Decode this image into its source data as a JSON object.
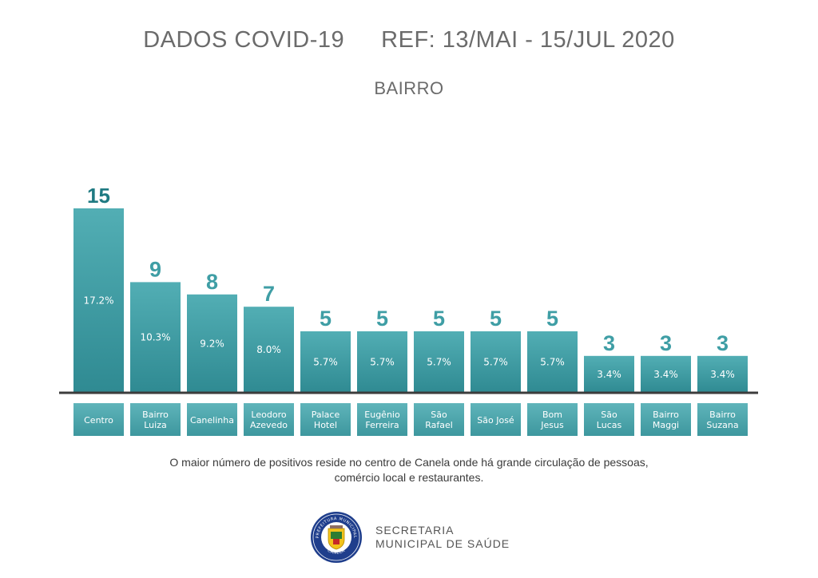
{
  "header": {
    "title": "DADOS COVID-19",
    "reference": "REF: 13/MAI - 15/JUL 2020",
    "subtitle": "BAIRRO"
  },
  "chart_data": {
    "type": "bar",
    "title": "DADOS COVID-19",
    "subtitle": "BAIRRO",
    "categories": [
      [
        "Centro"
      ],
      [
        "Bairro",
        "Luiza"
      ],
      [
        "Canelinha"
      ],
      [
        "Leodoro",
        "Azevedo"
      ],
      [
        "Palace",
        "Hotel"
      ],
      [
        "Eugênio",
        "Ferreira"
      ],
      [
        "São",
        "Rafael"
      ],
      [
        "São José"
      ],
      [
        "Bom",
        "Jesus"
      ],
      [
        "São",
        "Lucas"
      ],
      [
        "Bairro",
        "Maggi"
      ],
      [
        "Bairro",
        "Suzana"
      ]
    ],
    "values": [
      15,
      9,
      8,
      7,
      5,
      5,
      5,
      5,
      5,
      3,
      3,
      3
    ],
    "percent_labels": [
      "17.2%",
      "10.3%",
      "9.2%",
      "8.0%",
      "5.7%",
      "5.7%",
      "5.7%",
      "5.7%",
      "5.7%",
      "3.4%",
      "3.4%",
      "3.4%"
    ],
    "ylim": [
      0,
      15
    ],
    "grid": false,
    "colors": {
      "bar": "#4aa7ae",
      "bar_gradient_bottom": "#2f8a92",
      "value_text": "#3f9ea5",
      "value_text_max": "#1f7a82",
      "baseline": "#3c3c3c"
    }
  },
  "caption": {
    "line1": "O maior número de positivos reside no centro de Canela onde há grande circulação de pessoas,",
    "line2": "comércio local e restaurantes."
  },
  "footer": {
    "line1": "SECRETARIA",
    "line2": "MUNICIPAL DE SAÚDE",
    "seal_text_top": "PREFEITURA MUNICIPAL",
    "seal_text_bottom": "CANELA"
  }
}
